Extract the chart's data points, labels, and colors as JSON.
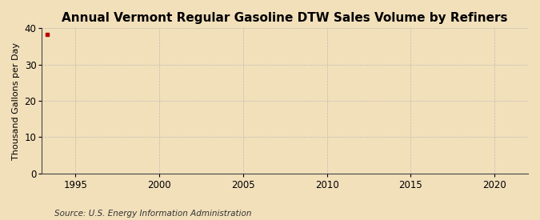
{
  "title": "Annual Vermont Regular Gasoline DTW Sales Volume by Refiners",
  "ylabel": "Thousand Gallons per Day",
  "source": "Source: U.S. Energy Information Administration",
  "xlim": [
    1993,
    2022
  ],
  "ylim": [
    0,
    40
  ],
  "yticks": [
    0,
    10,
    20,
    30,
    40
  ],
  "xticks": [
    1995,
    2000,
    2005,
    2010,
    2015,
    2020
  ],
  "data_x": [
    1993.3
  ],
  "data_y": [
    38.2
  ],
  "data_color": "#bb0000",
  "bg_color": "#f2e0bb",
  "plot_bg_color": "#f2e0bb",
  "grid_color": "#aaaaaa",
  "title_fontsize": 11,
  "label_fontsize": 8,
  "tick_fontsize": 8.5,
  "source_fontsize": 7.5
}
